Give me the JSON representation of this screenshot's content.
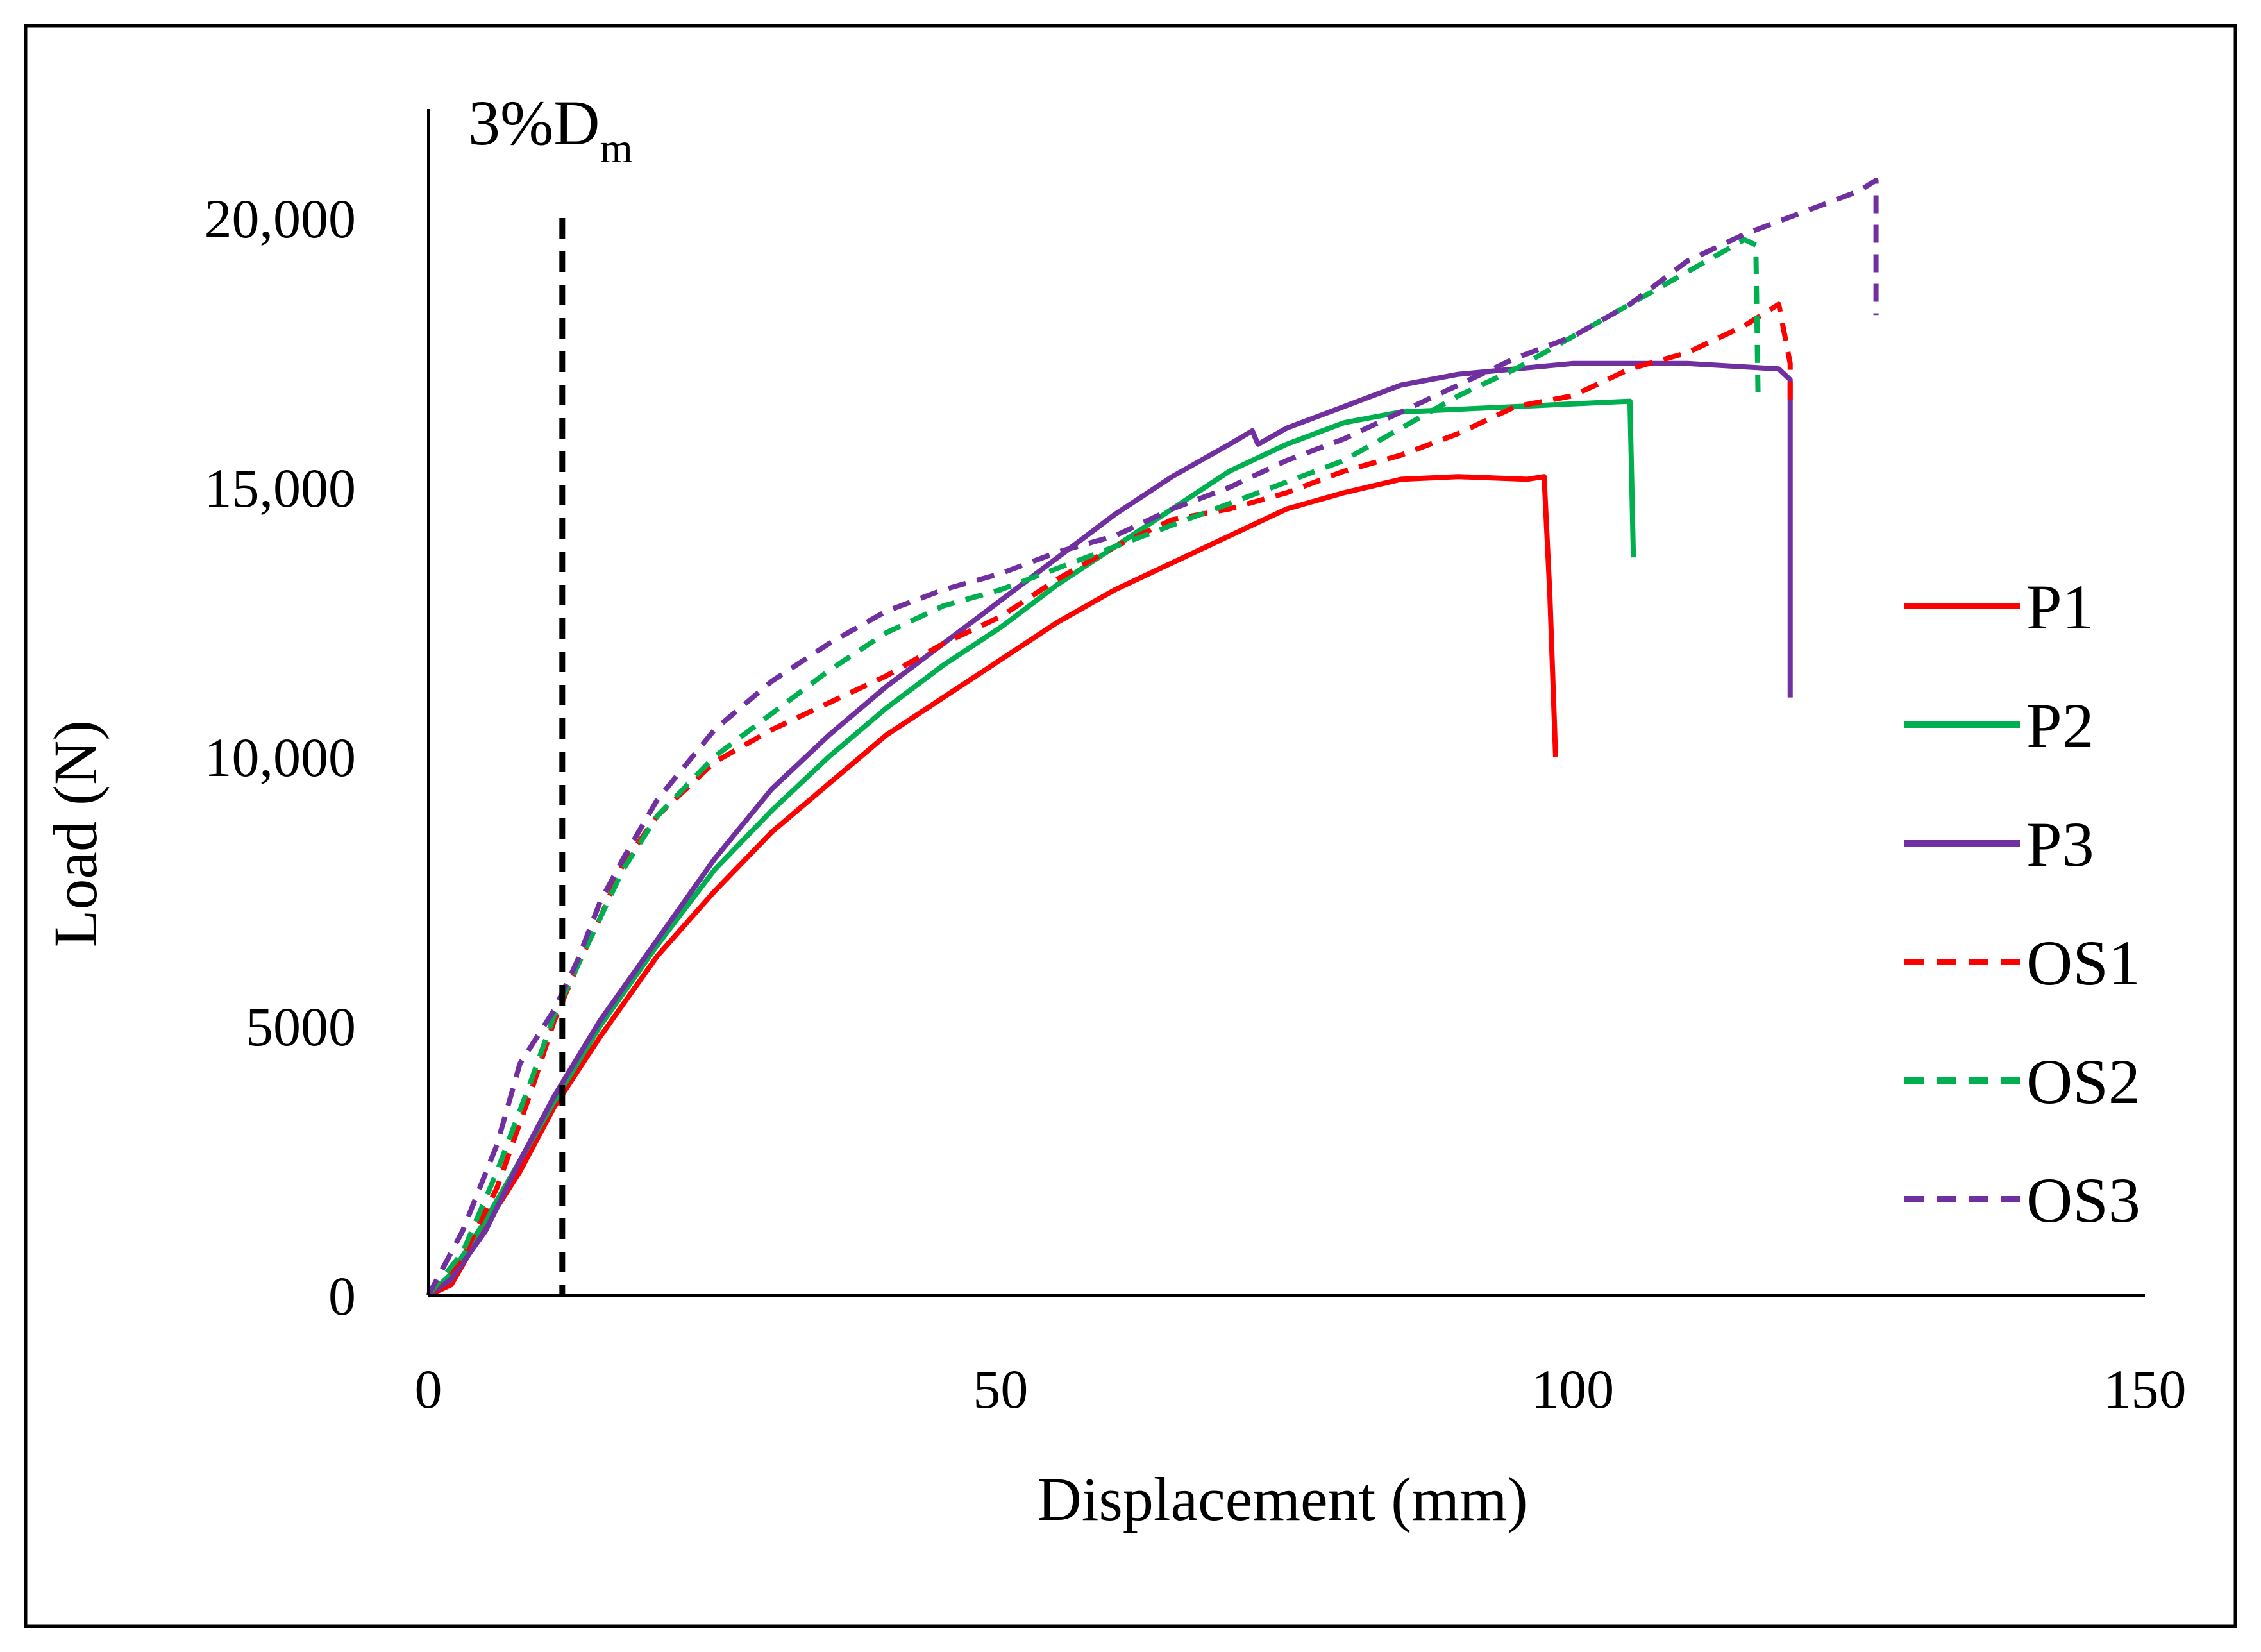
{
  "chart_data": {
    "type": "line",
    "title": "",
    "xlabel": "Displacement (mm)",
    "ylabel": "Load (N)",
    "xlim": [
      0,
      150
    ],
    "ylim": [
      0,
      21000
    ],
    "x_ticks": [
      0,
      50,
      100,
      150
    ],
    "x_tick_labels": [
      "0",
      "50",
      "100",
      "150"
    ],
    "y_ticks": [
      0,
      5000,
      10000,
      15000,
      20000
    ],
    "y_tick_labels": [
      "0",
      "5000",
      "10,000",
      "15,000",
      "20,000"
    ],
    "grid": false,
    "legend_position": "right",
    "reference_line": {
      "label_main": "3%D",
      "label_sub": "m",
      "x": 11.7,
      "y_top": 20000,
      "color": "#000000",
      "style": "dashed"
    },
    "series": [
      {
        "name": "P1",
        "color": "#ff0000",
        "style": "solid",
        "points": [
          [
            0,
            0
          ],
          [
            2,
            200
          ],
          [
            5,
            1300
          ],
          [
            8,
            2300
          ],
          [
            11,
            3500
          ],
          [
            15,
            4800
          ],
          [
            20,
            6300
          ],
          [
            25,
            7500
          ],
          [
            30,
            8600
          ],
          [
            35,
            9500
          ],
          [
            40,
            10400
          ],
          [
            45,
            11100
          ],
          [
            50,
            11800
          ],
          [
            55,
            12500
          ],
          [
            60,
            13100
          ],
          [
            65,
            13600
          ],
          [
            70,
            14100
          ],
          [
            75,
            14600
          ],
          [
            80,
            14900
          ],
          [
            85,
            15150
          ],
          [
            90,
            15200
          ],
          [
            96,
            15150
          ],
          [
            97.5,
            15200
          ],
          [
            98,
            13000
          ],
          [
            98.5,
            10000
          ]
        ]
      },
      {
        "name": "P2",
        "color": "#00b050",
        "style": "solid",
        "points": [
          [
            0,
            0
          ],
          [
            2,
            400
          ],
          [
            5,
            1400
          ],
          [
            8,
            2500
          ],
          [
            11,
            3600
          ],
          [
            15,
            5000
          ],
          [
            20,
            6500
          ],
          [
            25,
            7900
          ],
          [
            30,
            9000
          ],
          [
            35,
            10000
          ],
          [
            40,
            10900
          ],
          [
            45,
            11700
          ],
          [
            50,
            12400
          ],
          [
            55,
            13200
          ],
          [
            60,
            13900
          ],
          [
            65,
            14600
          ],
          [
            70,
            15300
          ],
          [
            75,
            15800
          ],
          [
            80,
            16200
          ],
          [
            85,
            16400
          ],
          [
            90,
            16450
          ],
          [
            95,
            16500
          ],
          [
            100,
            16550
          ],
          [
            105,
            16600
          ],
          [
            105.3,
            13700
          ]
        ]
      },
      {
        "name": "P3",
        "color": "#7030a0",
        "style": "solid",
        "points": [
          [
            0,
            0
          ],
          [
            2,
            300
          ],
          [
            5,
            1200
          ],
          [
            8,
            2500
          ],
          [
            11,
            3700
          ],
          [
            15,
            5100
          ],
          [
            20,
            6600
          ],
          [
            25,
            8100
          ],
          [
            30,
            9400
          ],
          [
            35,
            10400
          ],
          [
            40,
            11300
          ],
          [
            45,
            12100
          ],
          [
            50,
            12900
          ],
          [
            55,
            13700
          ],
          [
            60,
            14500
          ],
          [
            65,
            15200
          ],
          [
            70,
            15800
          ],
          [
            72,
            16050
          ],
          [
            72.5,
            15800
          ],
          [
            75,
            16100
          ],
          [
            80,
            16500
          ],
          [
            85,
            16900
          ],
          [
            90,
            17100
          ],
          [
            95,
            17200
          ],
          [
            100,
            17300
          ],
          [
            110,
            17300
          ],
          [
            118,
            17200
          ],
          [
            119,
            17000
          ],
          [
            119,
            11100
          ]
        ]
      },
      {
        "name": "OS1",
        "color": "#ff0000",
        "style": "dashed",
        "points": [
          [
            0,
            0
          ],
          [
            3,
            700
          ],
          [
            6,
            2000
          ],
          [
            9,
            3800
          ],
          [
            11,
            5100
          ],
          [
            13,
            6100
          ],
          [
            15,
            7000
          ],
          [
            17,
            8000
          ],
          [
            20,
            8900
          ],
          [
            25,
            9900
          ],
          [
            30,
            10500
          ],
          [
            35,
            11000
          ],
          [
            40,
            11500
          ],
          [
            45,
            12100
          ],
          [
            50,
            12600
          ],
          [
            55,
            13300
          ],
          [
            60,
            13900
          ],
          [
            65,
            14400
          ],
          [
            70,
            14600
          ],
          [
            75,
            14900
          ],
          [
            80,
            15300
          ],
          [
            85,
            15600
          ],
          [
            90,
            16000
          ],
          [
            95,
            16500
          ],
          [
            100,
            16700
          ],
          [
            105,
            17200
          ],
          [
            110,
            17500
          ],
          [
            115,
            18000
          ],
          [
            118,
            18400
          ],
          [
            119,
            17300
          ],
          [
            119,
            16600
          ]
        ]
      },
      {
        "name": "OS2",
        "color": "#00b050",
        "style": "dashed",
        "points": [
          [
            0,
            0
          ],
          [
            3,
            800
          ],
          [
            6,
            2300
          ],
          [
            9,
            4000
          ],
          [
            11,
            5200
          ],
          [
            13,
            6100
          ],
          [
            15,
            7000
          ],
          [
            17,
            7900
          ],
          [
            20,
            8900
          ],
          [
            25,
            10000
          ],
          [
            30,
            10800
          ],
          [
            35,
            11600
          ],
          [
            40,
            12300
          ],
          [
            45,
            12800
          ],
          [
            50,
            13100
          ],
          [
            55,
            13500
          ],
          [
            60,
            13900
          ],
          [
            65,
            14300
          ],
          [
            70,
            14700
          ],
          [
            75,
            15100
          ],
          [
            80,
            15500
          ],
          [
            85,
            16100
          ],
          [
            90,
            16700
          ],
          [
            95,
            17200
          ],
          [
            100,
            17800
          ],
          [
            105,
            18400
          ],
          [
            110,
            19000
          ],
          [
            115,
            19600
          ],
          [
            116,
            19500
          ],
          [
            116.2,
            16600
          ]
        ]
      },
      {
        "name": "OS3",
        "color": "#7030a0",
        "style": "dashed",
        "points": [
          [
            0,
            0
          ],
          [
            3,
            1200
          ],
          [
            6,
            2800
          ],
          [
            8,
            4300
          ],
          [
            11,
            5300
          ],
          [
            13,
            6200
          ],
          [
            15,
            7300
          ],
          [
            17,
            8100
          ],
          [
            20,
            9200
          ],
          [
            25,
            10500
          ],
          [
            30,
            11400
          ],
          [
            35,
            12100
          ],
          [
            40,
            12700
          ],
          [
            45,
            13100
          ],
          [
            50,
            13400
          ],
          [
            55,
            13800
          ],
          [
            60,
            14100
          ],
          [
            65,
            14600
          ],
          [
            70,
            15000
          ],
          [
            75,
            15500
          ],
          [
            80,
            15900
          ],
          [
            85,
            16400
          ],
          [
            90,
            16900
          ],
          [
            95,
            17400
          ],
          [
            100,
            17800
          ],
          [
            105,
            18400
          ],
          [
            110,
            19200
          ],
          [
            115,
            19700
          ],
          [
            120,
            20100
          ],
          [
            125,
            20500
          ],
          [
            126.5,
            20700
          ],
          [
            126.5,
            18200
          ]
        ]
      }
    ]
  }
}
